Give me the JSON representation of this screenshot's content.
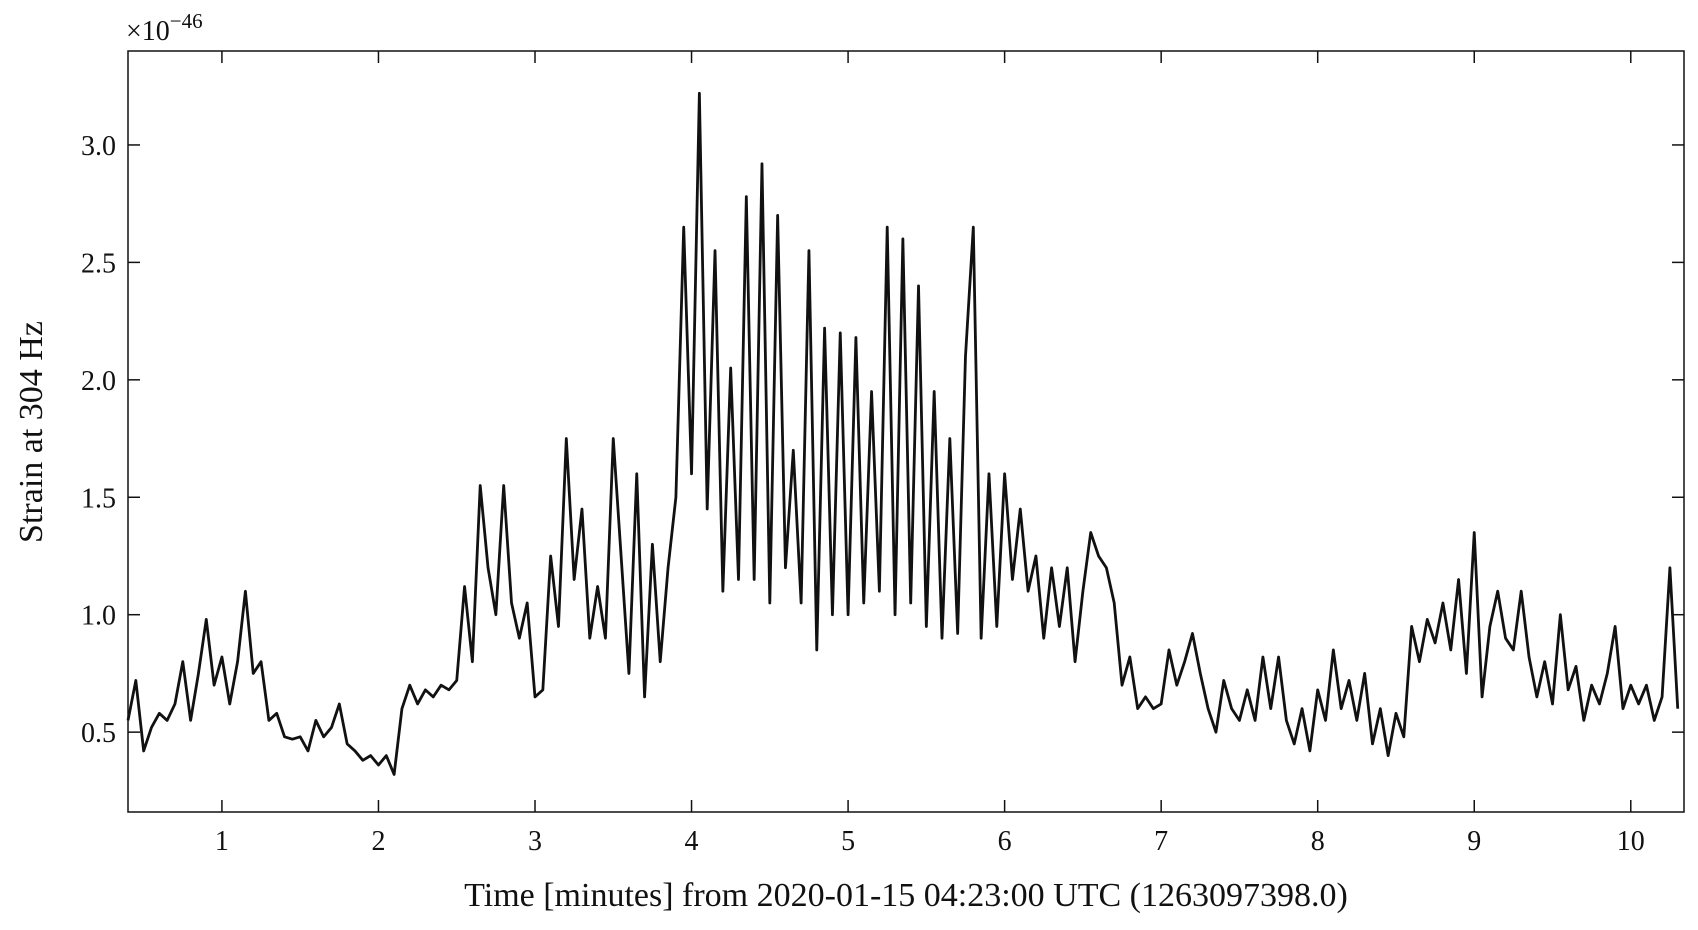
{
  "chart_data": {
    "type": "line",
    "x_label": "Time [minutes] from 2020-01-15 04:23:00 UTC (1263097398.0)",
    "y_label": "Strain at 304 Hz",
    "y_offset": {
      "base": "×10",
      "exponent": "−46"
    },
    "xlim": [
      0.4,
      10.34
    ],
    "ylim": [
      0.16,
      3.4
    ],
    "xticks": [
      1,
      2,
      3,
      4,
      5,
      6,
      7,
      8,
      9,
      10
    ],
    "yticks": [
      0.5,
      {
        "value": 1,
        "label": "1.0"
      },
      1.5,
      {
        "value": 2,
        "label": "2.0"
      },
      2.5,
      {
        "value": 3,
        "label": "3.0"
      }
    ],
    "grid": false,
    "x": [
      0.4,
      0.45,
      0.5,
      0.55,
      0.6,
      0.65,
      0.7,
      0.75,
      0.8,
      0.85,
      0.9,
      0.95,
      1.0,
      1.05,
      1.1,
      1.15,
      1.2,
      1.25,
      1.3,
      1.35,
      1.4,
      1.45,
      1.5,
      1.55,
      1.6,
      1.65,
      1.7,
      1.75,
      1.8,
      1.85,
      1.9,
      1.95,
      2.0,
      2.05,
      2.1,
      2.15,
      2.2,
      2.25,
      2.3,
      2.35,
      2.4,
      2.45,
      2.5,
      2.55,
      2.6,
      2.65,
      2.7,
      2.75,
      2.8,
      2.85,
      2.9,
      2.95,
      3.0,
      3.05,
      3.1,
      3.15,
      3.2,
      3.25,
      3.3,
      3.35,
      3.4,
      3.45,
      3.5,
      3.55,
      3.6,
      3.65,
      3.7,
      3.75,
      3.8,
      3.85,
      3.9,
      3.95,
      4.0,
      4.05,
      4.1,
      4.15,
      4.2,
      4.25,
      4.3,
      4.35,
      4.4,
      4.45,
      4.5,
      4.55,
      4.6,
      4.65,
      4.7,
      4.75,
      4.8,
      4.85,
      4.9,
      4.95,
      5.0,
      5.05,
      5.1,
      5.15,
      5.2,
      5.25,
      5.3,
      5.35,
      5.4,
      5.45,
      5.5,
      5.55,
      5.6,
      5.65,
      5.7,
      5.75,
      5.8,
      5.85,
      5.9,
      5.95,
      6.0,
      6.05,
      6.1,
      6.15,
      6.2,
      6.25,
      6.3,
      6.35,
      6.4,
      6.45,
      6.5,
      6.55,
      6.6,
      6.65,
      6.7,
      6.75,
      6.8,
      6.85,
      6.9,
      6.95,
      7.0,
      7.05,
      7.1,
      7.15,
      7.2,
      7.25,
      7.3,
      7.35,
      7.4,
      7.45,
      7.5,
      7.55,
      7.6,
      7.65,
      7.7,
      7.75,
      7.8,
      7.85,
      7.9,
      7.95,
      8.0,
      8.05,
      8.1,
      8.15,
      8.2,
      8.25,
      8.3,
      8.35,
      8.4,
      8.45,
      8.5,
      8.55,
      8.6,
      8.65,
      8.7,
      8.75,
      8.8,
      8.85,
      8.9,
      8.95,
      9.0,
      9.05,
      9.1,
      9.15,
      9.2,
      9.25,
      9.3,
      9.35,
      9.4,
      9.45,
      9.5,
      9.55,
      9.6,
      9.65,
      9.7,
      9.75,
      9.8,
      9.85,
      9.9,
      9.95,
      10.0,
      10.05,
      10.1,
      10.15,
      10.2,
      10.25,
      10.3
    ],
    "series": [
      {
        "color": "#111111",
        "values": [
          0.55,
          0.72,
          0.42,
          0.52,
          0.58,
          0.55,
          0.62,
          0.8,
          0.55,
          0.75,
          0.98,
          0.7,
          0.82,
          0.62,
          0.8,
          1.1,
          0.75,
          0.8,
          0.55,
          0.58,
          0.48,
          0.47,
          0.48,
          0.42,
          0.55,
          0.48,
          0.52,
          0.62,
          0.45,
          0.42,
          0.38,
          0.4,
          0.36,
          0.4,
          0.32,
          0.6,
          0.7,
          0.62,
          0.68,
          0.65,
          0.7,
          0.68,
          0.72,
          1.12,
          0.8,
          1.55,
          1.2,
          1.0,
          1.55,
          1.05,
          0.9,
          1.05,
          0.65,
          0.68,
          1.25,
          0.95,
          1.75,
          1.15,
          1.45,
          0.9,
          1.12,
          0.9,
          1.75,
          1.25,
          0.75,
          1.6,
          0.65,
          1.3,
          0.8,
          1.2,
          1.5,
          2.65,
          1.6,
          3.22,
          1.45,
          2.55,
          1.1,
          2.05,
          1.15,
          2.78,
          1.15,
          2.92,
          1.05,
          2.7,
          1.2,
          1.7,
          1.05,
          2.55,
          0.85,
          2.22,
          1.0,
          2.2,
          1.0,
          2.18,
          1.05,
          1.95,
          1.1,
          2.65,
          1.0,
          2.6,
          1.05,
          2.4,
          0.95,
          1.95,
          0.9,
          1.75,
          0.92,
          2.1,
          2.65,
          0.9,
          1.6,
          0.95,
          1.6,
          1.15,
          1.45,
          1.1,
          1.25,
          0.9,
          1.2,
          0.95,
          1.2,
          0.8,
          1.1,
          1.35,
          1.25,
          1.2,
          1.05,
          0.7,
          0.82,
          0.6,
          0.65,
          0.6,
          0.62,
          0.85,
          0.7,
          0.8,
          0.92,
          0.75,
          0.6,
          0.5,
          0.72,
          0.6,
          0.55,
          0.68,
          0.55,
          0.82,
          0.6,
          0.82,
          0.55,
          0.45,
          0.6,
          0.42,
          0.68,
          0.55,
          0.85,
          0.6,
          0.72,
          0.55,
          0.75,
          0.45,
          0.6,
          0.4,
          0.58,
          0.48,
          0.95,
          0.8,
          0.98,
          0.88,
          1.05,
          0.85,
          1.15,
          0.75,
          1.35,
          0.65,
          0.95,
          1.1,
          0.9,
          0.85,
          1.1,
          0.82,
          0.65,
          0.8,
          0.62,
          1.0,
          0.68,
          0.78,
          0.55,
          0.7,
          0.62,
          0.75,
          0.95,
          0.6,
          0.7,
          0.62,
          0.7,
          0.55,
          0.65,
          1.2,
          0.6
        ]
      }
    ]
  }
}
